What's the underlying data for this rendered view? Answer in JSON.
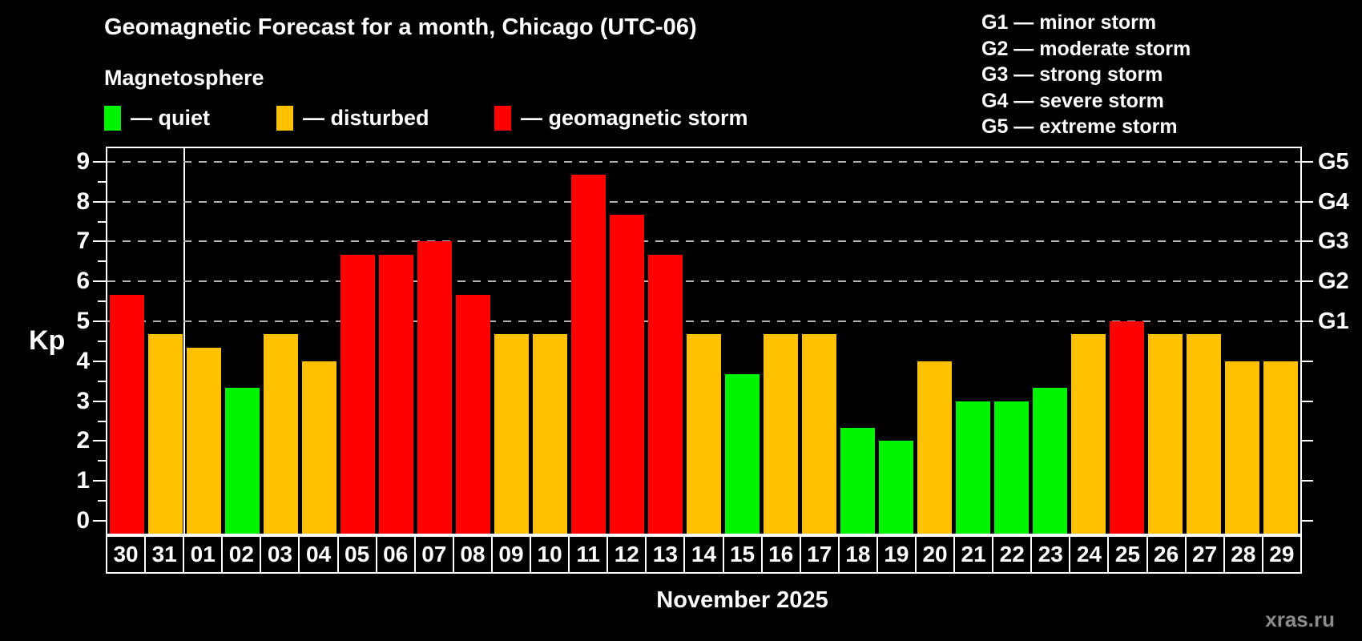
{
  "header": {
    "title": "Geomagnetic Forecast for a month, Chicago (UTC-06)",
    "subtitle": "Magnetosphere"
  },
  "legend": {
    "items": [
      {
        "key": "quiet",
        "label": "— quiet",
        "color": "#00f400",
        "x": 130
      },
      {
        "key": "disturbed",
        "label": "— disturbed",
        "color": "#ffc000",
        "x": 345
      },
      {
        "key": "storm",
        "label": "— geomagnetic storm",
        "color": "#ff0000",
        "x": 617
      }
    ]
  },
  "g_scale_legend": {
    "lines": [
      "G1 — minor storm",
      "G2 — moderate storm",
      "G3 — strong storm",
      "G4 — severe storm",
      "G5 — extreme storm"
    ]
  },
  "axes": {
    "y_left_label": "Kp",
    "y_left_ticks": [
      "0",
      "1",
      "2",
      "3",
      "4",
      "5",
      "6",
      "7",
      "8",
      "9"
    ],
    "y_right_labels": [
      {
        "label": "G1",
        "kp": 5
      },
      {
        "label": "G2",
        "kp": 6
      },
      {
        "label": "G3",
        "kp": 7
      },
      {
        "label": "G4",
        "kp": 8
      },
      {
        "label": "G5",
        "kp": 9
      }
    ],
    "x_label": "November 2025"
  },
  "watermark": "xras.ru",
  "colors": {
    "background": "#000000",
    "quiet": "#00f400",
    "disturbed": "#ffc000",
    "storm": "#ff0000",
    "grid": "#b3b3b3",
    "axis": "#ffffff",
    "watermark": "#8c8c8c"
  },
  "chart_data": {
    "type": "bar",
    "title": "Geomagnetic Forecast for a month, Chicago (UTC-06)",
    "subtitle": "Magnetosphere",
    "xlabel": "November 2025",
    "ylabel": "Kp",
    "ylim": [
      0,
      9
    ],
    "grid": "dashed horizontal at Kp 5,6,7,8,9 (G1–G5 storm levels)",
    "gridlines_kp": [
      5,
      6,
      7,
      8,
      9
    ],
    "legend_position": "top-left (categories) and top-right (G scale)",
    "month_separator_after_index": 1,
    "categories": [
      "30",
      "31",
      "01",
      "02",
      "03",
      "04",
      "05",
      "06",
      "07",
      "08",
      "09",
      "10",
      "11",
      "12",
      "13",
      "14",
      "15",
      "16",
      "17",
      "18",
      "19",
      "20",
      "21",
      "22",
      "23",
      "24",
      "25",
      "26",
      "27",
      "28",
      "29"
    ],
    "values": [
      5.67,
      4.67,
      4.33,
      3.33,
      4.67,
      4.0,
      6.67,
      6.67,
      7.0,
      5.67,
      4.67,
      4.67,
      8.67,
      7.67,
      6.67,
      4.67,
      3.67,
      4.67,
      4.67,
      2.33,
      2.0,
      4.0,
      3.0,
      3.0,
      3.33,
      4.67,
      5.0,
      4.67,
      4.67,
      4.0,
      4.0
    ],
    "points": [
      {
        "day": "30",
        "kp": 5.67,
        "category": "storm"
      },
      {
        "day": "31",
        "kp": 4.67,
        "category": "disturbed"
      },
      {
        "day": "01",
        "kp": 4.33,
        "category": "disturbed"
      },
      {
        "day": "02",
        "kp": 3.33,
        "category": "quiet"
      },
      {
        "day": "03",
        "kp": 4.67,
        "category": "disturbed"
      },
      {
        "day": "04",
        "kp": 4.0,
        "category": "disturbed"
      },
      {
        "day": "05",
        "kp": 6.67,
        "category": "storm"
      },
      {
        "day": "06",
        "kp": 6.67,
        "category": "storm"
      },
      {
        "day": "07",
        "kp": 7.0,
        "category": "storm"
      },
      {
        "day": "08",
        "kp": 5.67,
        "category": "storm"
      },
      {
        "day": "09",
        "kp": 4.67,
        "category": "disturbed"
      },
      {
        "day": "10",
        "kp": 4.67,
        "category": "disturbed"
      },
      {
        "day": "11",
        "kp": 8.67,
        "category": "storm"
      },
      {
        "day": "12",
        "kp": 7.67,
        "category": "storm"
      },
      {
        "day": "13",
        "kp": 6.67,
        "category": "storm"
      },
      {
        "day": "14",
        "kp": 4.67,
        "category": "disturbed"
      },
      {
        "day": "15",
        "kp": 3.67,
        "category": "quiet"
      },
      {
        "day": "16",
        "kp": 4.67,
        "category": "disturbed"
      },
      {
        "day": "17",
        "kp": 4.67,
        "category": "disturbed"
      },
      {
        "day": "18",
        "kp": 2.33,
        "category": "quiet"
      },
      {
        "day": "19",
        "kp": 2.0,
        "category": "quiet"
      },
      {
        "day": "20",
        "kp": 4.0,
        "category": "disturbed"
      },
      {
        "day": "21",
        "kp": 3.0,
        "category": "quiet"
      },
      {
        "day": "22",
        "kp": 3.0,
        "category": "quiet"
      },
      {
        "day": "23",
        "kp": 3.33,
        "category": "quiet"
      },
      {
        "day": "24",
        "kp": 4.67,
        "category": "disturbed"
      },
      {
        "day": "25",
        "kp": 5.0,
        "category": "storm"
      },
      {
        "day": "26",
        "kp": 4.67,
        "category": "disturbed"
      },
      {
        "day": "27",
        "kp": 4.67,
        "category": "disturbed"
      },
      {
        "day": "28",
        "kp": 4.0,
        "category": "disturbed"
      },
      {
        "day": "29",
        "kp": 4.0,
        "category": "disturbed"
      }
    ]
  }
}
